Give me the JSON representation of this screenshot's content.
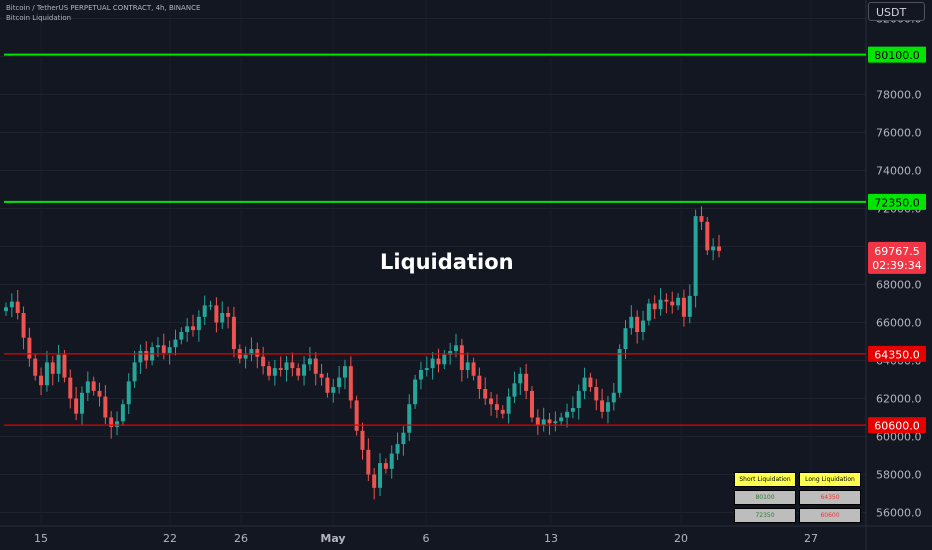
{
  "header": {
    "line1": "Bitcoin / TetherUS PERPETUAL CONTRACT, 4h, BINANCE",
    "line2": "Bitcoin Liquidation"
  },
  "unit_label": "USDT",
  "annotation": "Liquidation",
  "colors": {
    "up": "#26a69a",
    "down": "#ef5350",
    "resistance": "#00e600",
    "support": "#e60000",
    "background": "#131722"
  },
  "chart_data": {
    "type": "candlestick",
    "symbol": "Bitcoin / TetherUS PERPETUAL CONTRACT",
    "timeframe": "4h",
    "exchange": "BINANCE",
    "ylim": [
      55000,
      83000
    ],
    "y_ticks": [
      56000,
      58000,
      60000,
      62000,
      64000,
      66000,
      68000,
      70000,
      72000,
      74000,
      76000,
      78000,
      80000,
      82000
    ],
    "y_tick_labels": [
      "56000.0",
      "58000.0",
      "60000.0",
      "62000.0",
      "64000.0",
      "66000.0",
      "68000.0",
      "70000.0",
      "72000.0",
      "74000.0",
      "76000.0",
      "78000.0",
      "80000.0",
      "82000.0"
    ],
    "x_ticks": [
      "15",
      "22",
      "26",
      "May",
      "6",
      "13",
      "20",
      "27"
    ],
    "current_price": "69767.5",
    "countdown": "02:39:34",
    "levels": [
      {
        "label": "80100.0",
        "value": 80100,
        "kind": "resistance"
      },
      {
        "label": "72350.0",
        "value": 72350,
        "kind": "resistance"
      },
      {
        "label": "64350.0",
        "value": 64350,
        "kind": "support"
      },
      {
        "label": "60600.0",
        "value": 60600,
        "kind": "support"
      }
    ],
    "closes": [
      66800,
      67100,
      66500,
      65200,
      64100,
      63200,
      62700,
      63900,
      63300,
      64300,
      63100,
      62000,
      61200,
      62300,
      62900,
      62400,
      62100,
      61000,
      60500,
      60800,
      61700,
      62900,
      63900,
      64500,
      64000,
      64700,
      64800,
      64400,
      64700,
      65100,
      65500,
      65800,
      65600,
      66300,
      66900,
      66900,
      66000,
      66500,
      66300,
      64600,
      64100,
      64300,
      64600,
      64200,
      63700,
      63200,
      63600,
      63500,
      63900,
      63600,
      63200,
      63800,
      64100,
      63300,
      63100,
      62300,
      62600,
      63100,
      63700,
      61900,
      60300,
      59300,
      58000,
      57300,
      58600,
      58300,
      59100,
      59600,
      60200,
      61700,
      63000,
      63500,
      63600,
      64100,
      63800,
      64300,
      64500,
      64800,
      63500,
      63900,
      63200,
      62500,
      62000,
      61700,
      61400,
      61200,
      62100,
      62800,
      63300,
      62400,
      61000,
      60600,
      60900,
      60700,
      60800,
      61000,
      61300,
      61500,
      62400,
      63100,
      62600,
      61900,
      61300,
      61800,
      62300,
      64600,
      65700,
      66300,
      65500,
      66100,
      67000,
      66700,
      67200,
      67100,
      66900,
      67300,
      66300,
      67400,
      71600,
      71300,
      69800,
      70000,
      69767.5
    ]
  },
  "liquidation_table": {
    "headers": [
      "Short Liquidation",
      "Long Liquidation"
    ],
    "rows": [
      [
        "80100",
        "64350"
      ],
      [
        "72350",
        "60600"
      ]
    ]
  }
}
